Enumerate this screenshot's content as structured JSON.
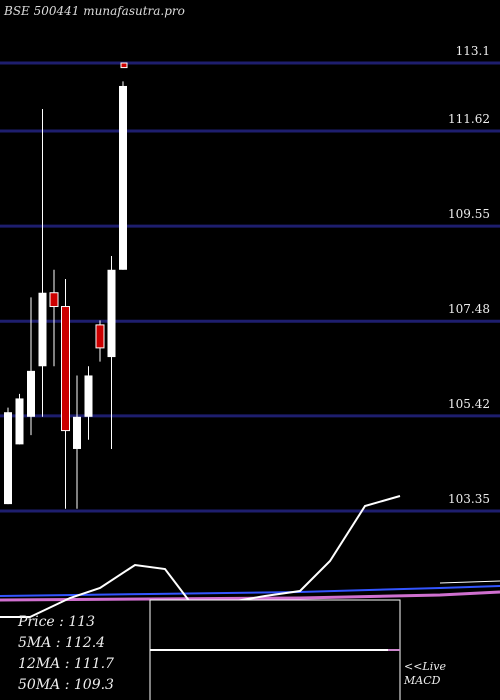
{
  "title": "BSE 500441 munafasutra.pro",
  "chart_data": {
    "type": "candlestick",
    "price_levels": [
      113.1,
      111.62,
      109.55,
      107.48,
      105.42,
      103.35
    ],
    "ylim": [
      102.5,
      114.0
    ],
    "candles": [
      {
        "open": 103.5,
        "close": 105.5,
        "high": 105.6,
        "low": 103.5,
        "color": "white"
      },
      {
        "open": 104.8,
        "close": 105.8,
        "high": 105.9,
        "low": 104.8,
        "color": "white"
      },
      {
        "open": 105.4,
        "close": 106.4,
        "high": 108.0,
        "low": 105.0,
        "color": "white"
      },
      {
        "open": 106.5,
        "close": 108.1,
        "high": 112.1,
        "low": 105.4,
        "color": "white"
      },
      {
        "open": 108.1,
        "close": 107.8,
        "high": 108.6,
        "low": 106.5,
        "color": "red"
      },
      {
        "open": 107.8,
        "close": 105.1,
        "high": 108.4,
        "low": 103.4,
        "color": "red"
      },
      {
        "open": 104.7,
        "close": 105.4,
        "high": 106.3,
        "low": 103.4,
        "color": "white"
      },
      {
        "open": 105.4,
        "close": 106.3,
        "high": 106.5,
        "low": 104.9,
        "color": "white"
      },
      {
        "open": 106.9,
        "close": 107.4,
        "high": 107.5,
        "low": 106.6,
        "color": "red"
      },
      {
        "open": 106.7,
        "close": 108.6,
        "high": 108.9,
        "low": 104.7,
        "color": "white"
      },
      {
        "open": 108.6,
        "close": 112.6,
        "high": 112.7,
        "low": 108.6,
        "color": "white"
      },
      {
        "open": 113.1,
        "close": 113.0,
        "high": 113.1,
        "low": 113.0,
        "color": "red"
      }
    ],
    "indicator_line": [
      503,
      516,
      513,
      502,
      486,
      482,
      480,
      488,
      497,
      511,
      527,
      540,
      555,
      576,
      590,
      610
    ]
  },
  "stats": {
    "price": "Price   : 113",
    "ma5": "5MA : 112.4",
    "ma12": "12MA : 111.7",
    "ma50": "50MA : 109.3"
  },
  "live": {
    "line1": "<<Live",
    "line2": "MACD"
  }
}
